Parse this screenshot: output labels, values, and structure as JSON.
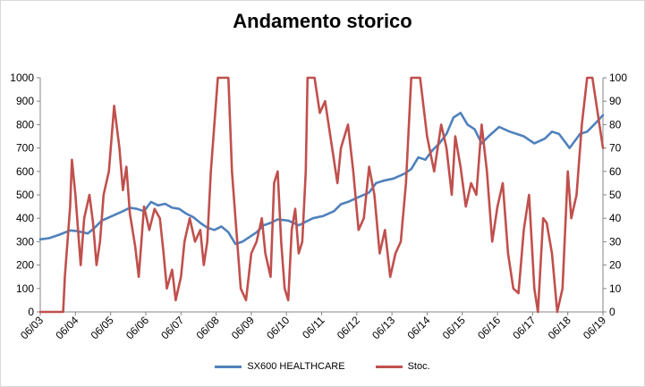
{
  "chart_data": {
    "type": "line",
    "title": "Andamento storico",
    "xlabel": "",
    "ylabel": "",
    "x_ticks": [
      "06/03",
      "06/04",
      "06/05",
      "06/06",
      "06/07",
      "06/08",
      "06/09",
      "06/10",
      "06/11",
      "06/12",
      "06/13",
      "06/14",
      "06/15",
      "06/16",
      "06/17",
      "06/18",
      "06/19"
    ],
    "y_left": {
      "ylim": [
        0,
        1000
      ],
      "ticks": [
        0,
        100,
        200,
        300,
        400,
        500,
        600,
        700,
        800,
        900,
        1000
      ]
    },
    "y_right": {
      "ylim": [
        0,
        100
      ],
      "ticks": [
        0,
        10,
        20,
        30,
        40,
        50,
        60,
        70,
        80,
        90,
        100
      ]
    },
    "grid": false,
    "legend_position": "bottom",
    "series": [
      {
        "name": "SX600 HEALTHCARE",
        "color": "#4f81bd",
        "axis": "left",
        "x": [
          2003.45,
          2003.7,
          2004.0,
          2004.3,
          2004.5,
          2004.8,
          2005.0,
          2005.2,
          2005.5,
          2005.8,
          2006.0,
          2006.2,
          2006.4,
          2006.6,
          2006.8,
          2007.0,
          2007.2,
          2007.4,
          2007.6,
          2007.8,
          2008.0,
          2008.2,
          2008.4,
          2008.6,
          2008.8,
          2009.0,
          2009.2,
          2009.4,
          2009.6,
          2009.8,
          2010.0,
          2010.2,
          2010.5,
          2010.8,
          2011.0,
          2011.2,
          2011.5,
          2011.8,
          2012.0,
          2012.2,
          2012.5,
          2012.8,
          2013.0,
          2013.2,
          2013.5,
          2013.8,
          2014.0,
          2014.2,
          2014.4,
          2014.6,
          2014.8,
          2015.0,
          2015.2,
          2015.4,
          2015.6,
          2015.8,
          2016.0,
          2016.2,
          2016.5,
          2016.8,
          2017.0,
          2017.2,
          2017.5,
          2017.8,
          2018.0,
          2018.2,
          2018.5,
          2018.8,
          2019.0,
          2019.2,
          2019.45
        ],
        "values": [
          310,
          315,
          330,
          348,
          345,
          335,
          360,
          390,
          410,
          430,
          445,
          440,
          430,
          470,
          455,
          462,
          445,
          440,
          420,
          405,
          380,
          360,
          350,
          365,
          340,
          290,
          300,
          320,
          340,
          370,
          380,
          395,
          390,
          370,
          385,
          400,
          410,
          430,
          460,
          470,
          490,
          510,
          550,
          560,
          570,
          590,
          610,
          660,
          650,
          690,
          720,
          760,
          830,
          850,
          800,
          780,
          720,
          750,
          790,
          770,
          760,
          750,
          720,
          740,
          770,
          760,
          700,
          760,
          770,
          800,
          840
        ]
      },
      {
        "name": "Stoc.",
        "color": "#c0504d",
        "axis": "right",
        "x": [
          2003.45,
          2003.8,
          2004.1,
          2004.15,
          2004.3,
          2004.35,
          2004.45,
          2004.6,
          2004.7,
          2004.85,
          2004.95,
          2005.05,
          2005.15,
          2005.25,
          2005.4,
          2005.55,
          2005.7,
          2005.8,
          2005.9,
          2006.0,
          2006.15,
          2006.25,
          2006.4,
          2006.55,
          2006.7,
          2006.85,
          2006.95,
          2007.05,
          2007.2,
          2007.3,
          2007.45,
          2007.55,
          2007.7,
          2007.85,
          2008.0,
          2008.1,
          2008.2,
          2008.3,
          2008.5,
          2008.7,
          2008.8,
          2008.9,
          2009.0,
          2009.15,
          2009.3,
          2009.45,
          2009.6,
          2009.75,
          2009.85,
          2010.0,
          2010.1,
          2010.2,
          2010.3,
          2010.4,
          2010.5,
          2010.6,
          2010.7,
          2010.8,
          2010.9,
          2011.0,
          2011.05,
          2011.15,
          2011.25,
          2011.4,
          2011.55,
          2011.7,
          2011.9,
          2012.0,
          2012.2,
          2012.35,
          2012.5,
          2012.65,
          2012.8,
          2012.95,
          2013.1,
          2013.25,
          2013.4,
          2013.55,
          2013.7,
          2013.85,
          2014.0,
          2014.1,
          2014.25,
          2014.45,
          2014.65,
          2014.85,
          2015.0,
          2015.15,
          2015.25,
          2015.4,
          2015.55,
          2015.7,
          2015.85,
          2016.0,
          2016.15,
          2016.3,
          2016.45,
          2016.6,
          2016.75,
          2016.9,
          2017.05,
          2017.2,
          2017.35,
          2017.5,
          2017.6,
          2017.75,
          2017.85,
          2018.0,
          2018.15,
          2018.3,
          2018.45,
          2018.55,
          2018.7,
          2018.85,
          2019.0,
          2019.15,
          2019.3,
          2019.45
        ],
        "values": [
          0,
          0,
          0,
          15,
          45,
          65,
          50,
          20,
          40,
          50,
          38,
          20,
          30,
          50,
          60,
          88,
          70,
          52,
          62,
          42,
          28,
          15,
          45,
          35,
          44,
          40,
          26,
          10,
          18,
          5,
          15,
          30,
          40,
          30,
          35,
          20,
          30,
          60,
          100,
          100,
          100,
          60,
          40,
          10,
          5,
          25,
          30,
          40,
          25,
          15,
          55,
          60,
          30,
          10,
          5,
          35,
          44,
          25,
          30,
          60,
          100,
          100,
          100,
          85,
          90,
          75,
          55,
          70,
          80,
          60,
          35,
          40,
          62,
          50,
          25,
          35,
          15,
          25,
          30,
          55,
          100,
          100,
          100,
          75,
          60,
          80,
          70,
          50,
          75,
          62,
          45,
          55,
          50,
          80,
          60,
          30,
          45,
          55,
          25,
          10,
          8,
          35,
          50,
          10,
          0,
          40,
          38,
          25,
          0,
          10,
          60,
          40,
          50,
          80,
          100,
          100,
          85,
          70
        ]
      }
    ]
  }
}
